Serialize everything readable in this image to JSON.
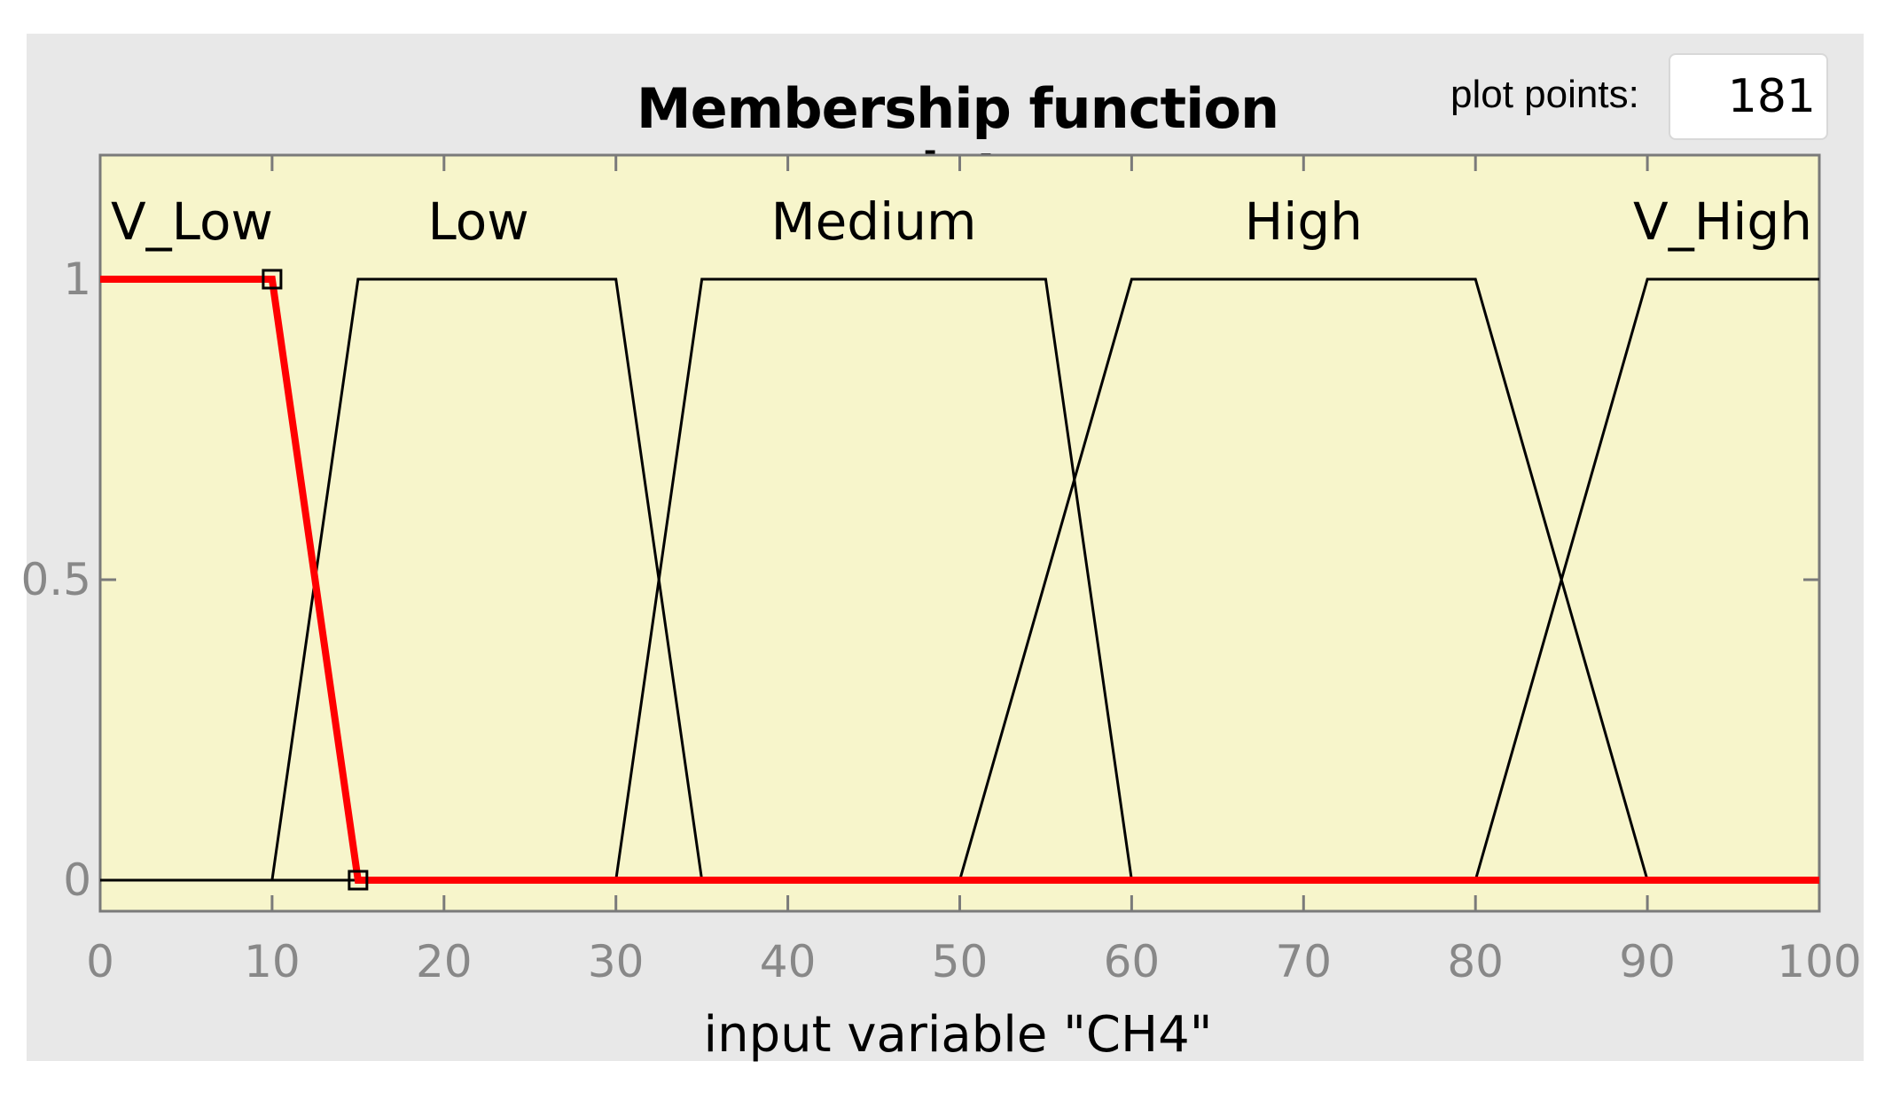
{
  "window": {
    "title": "Membership function plots",
    "plot_points_label": "plot points:",
    "plot_points_value": "181"
  },
  "chart_data": {
    "type": "line",
    "xlabel": "input variable \"CH4\"",
    "xlim": [
      0,
      100
    ],
    "ylim": [
      0,
      1
    ],
    "x_ticks": [
      0,
      10,
      20,
      30,
      40,
      50,
      60,
      70,
      80,
      90,
      100
    ],
    "y_ticks": [
      0,
      0.5,
      1
    ],
    "y_tick_labels": [
      "0",
      "0.5",
      "1"
    ],
    "colors": {
      "selected": "#ff0000",
      "normal": "#000000",
      "background": "#f7f5cb"
    },
    "series": [
      {
        "name": "V_Low",
        "selected": true,
        "points": [
          [
            0,
            1
          ],
          [
            10,
            1
          ],
          [
            15,
            0
          ],
          [
            100,
            0
          ]
        ]
      },
      {
        "name": "Low",
        "selected": false,
        "points": [
          [
            0,
            0
          ],
          [
            10,
            0
          ],
          [
            15,
            1
          ],
          [
            30,
            1
          ],
          [
            35,
            0
          ],
          [
            100,
            0
          ]
        ]
      },
      {
        "name": "Medium",
        "selected": false,
        "points": [
          [
            0,
            0
          ],
          [
            30,
            0
          ],
          [
            35,
            1
          ],
          [
            55,
            1
          ],
          [
            60,
            0
          ],
          [
            100,
            0
          ]
        ]
      },
      {
        "name": "High",
        "selected": false,
        "points": [
          [
            0,
            0
          ],
          [
            50,
            0
          ],
          [
            60,
            1
          ],
          [
            80,
            1
          ],
          [
            90,
            0
          ],
          [
            100,
            0
          ]
        ]
      },
      {
        "name": "V_High",
        "selected": false,
        "points": [
          [
            0,
            0
          ],
          [
            80,
            0
          ],
          [
            90,
            1
          ],
          [
            100,
            1
          ]
        ]
      }
    ],
    "label_x": [
      10,
      22,
      45,
      70,
      95
    ],
    "handles": [
      [
        10,
        1
      ],
      [
        15,
        0
      ]
    ]
  }
}
